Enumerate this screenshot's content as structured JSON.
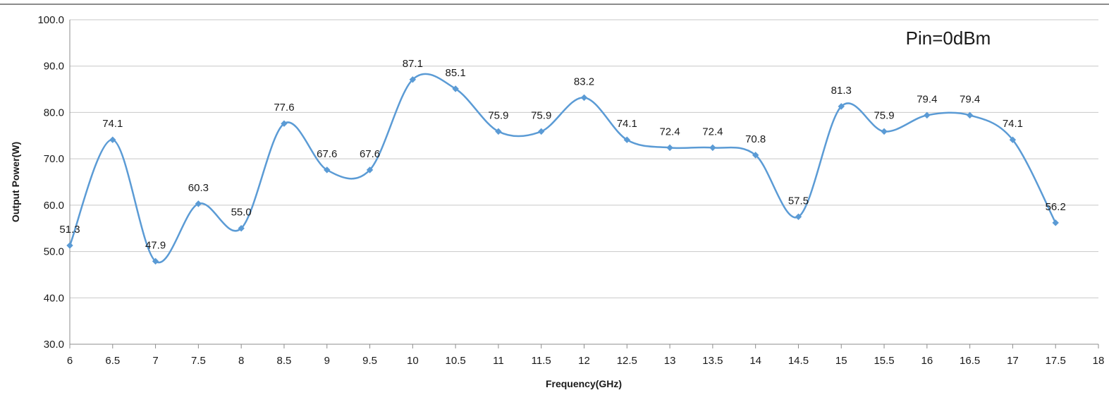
{
  "chart_data": {
    "type": "line",
    "title": "",
    "annotation": "Pin=0dBm",
    "xlabel": "Frequency(GHz)",
    "ylabel": "Output Power(W)",
    "xlim": [
      6,
      18
    ],
    "ylim": [
      30,
      100
    ],
    "x_ticks": [
      "6",
      "6.5",
      "7",
      "7.5",
      "8",
      "8.5",
      "9",
      "9.5",
      "10",
      "10.5",
      "11",
      "11.5",
      "12",
      "12.5",
      "13",
      "13.5",
      "14",
      "14.5",
      "15",
      "15.5",
      "16",
      "16.5",
      "17",
      "17.5",
      "18"
    ],
    "y_ticks": [
      "30.0",
      "40.0",
      "50.0",
      "60.0",
      "70.0",
      "80.0",
      "90.0",
      "100.0"
    ],
    "grid": "horizontal",
    "smooth": true,
    "line_color": "#5b9bd5",
    "series": [
      {
        "x": [
          6,
          6.5,
          7,
          7.5,
          8,
          8.5,
          9,
          9.5,
          10,
          10.5,
          11,
          11.5,
          12,
          12.5,
          13,
          13.5,
          14,
          14.5,
          15,
          15.5,
          16,
          16.5,
          17,
          17.5
        ],
        "values": [
          51.3,
          74.1,
          47.9,
          60.3,
          55.0,
          77.6,
          67.6,
          67.6,
          87.1,
          85.1,
          75.9,
          75.9,
          83.2,
          74.1,
          72.4,
          72.4,
          70.8,
          57.5,
          81.3,
          75.9,
          79.4,
          79.4,
          74.1,
          56.2
        ],
        "labels": [
          "51.3",
          "74.1",
          "47.9",
          "60.3",
          "55.0",
          "77.6",
          "67.6",
          "67.6",
          "87.1",
          "85.1",
          "75.9",
          "75.9",
          "83.2",
          "74.1",
          "72.4",
          "72.4",
          "70.8",
          "57.5",
          "81.3",
          "75.9",
          "79.4",
          "79.4",
          "74.1",
          "56.2"
        ]
      }
    ]
  }
}
